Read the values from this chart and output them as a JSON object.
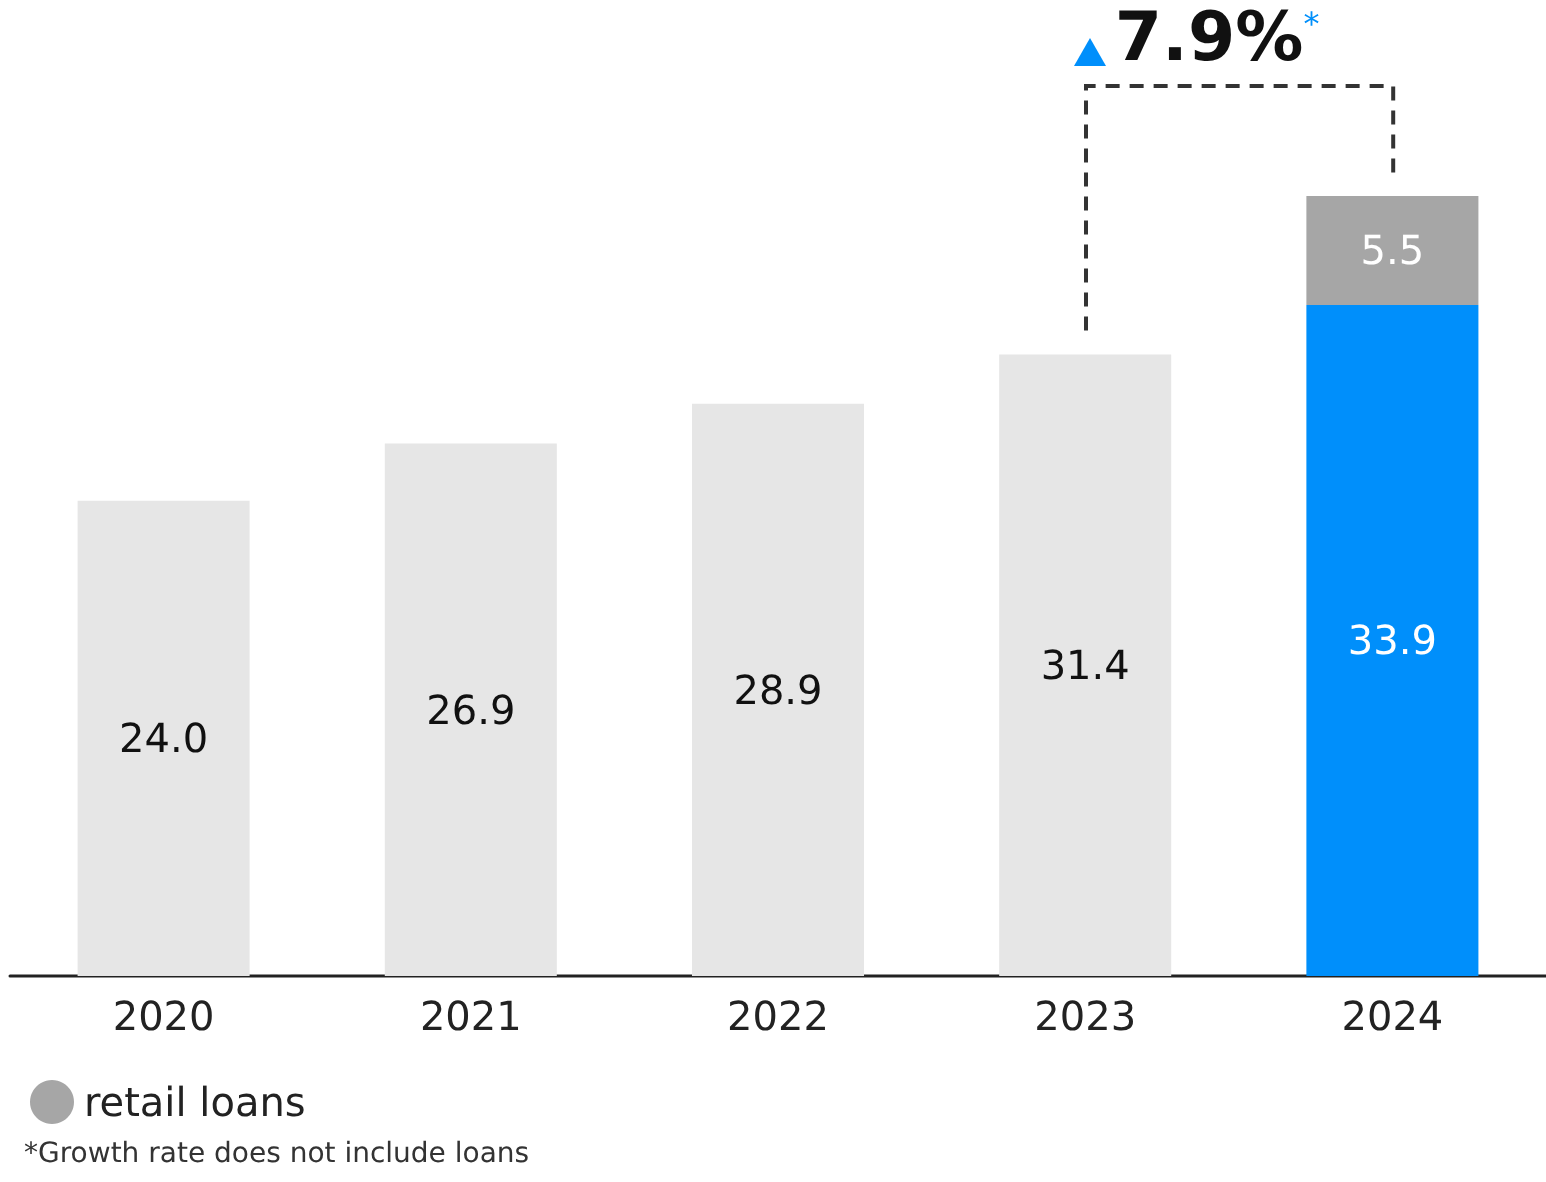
{
  "chart_data": {
    "type": "bar",
    "stacked": true,
    "categories": [
      "2020",
      "2021",
      "2022",
      "2023",
      "2024"
    ],
    "series": [
      {
        "colors": [
          "#e6e6e6",
          "#e6e6e6",
          "#e6e6e6",
          "#e6e6e6",
          "#008ffb"
        ],
        "values": [
          24.0,
          26.9,
          28.9,
          31.4,
          33.9
        ],
        "value_labels": [
          "24.0",
          "26.9",
          "28.9",
          "31.4",
          "33.9"
        ]
      },
      {
        "name": "retail loans",
        "color": "#a6a6a6",
        "values": [
          null,
          null,
          null,
          null,
          5.5
        ],
        "value_labels": [
          null,
          null,
          null,
          null,
          "5.5"
        ]
      }
    ],
    "legend": "bottom left",
    "annotations": [
      "7.9%$^{*}$",
      "*Growth rate does not include loans"
    ]
  }
}
